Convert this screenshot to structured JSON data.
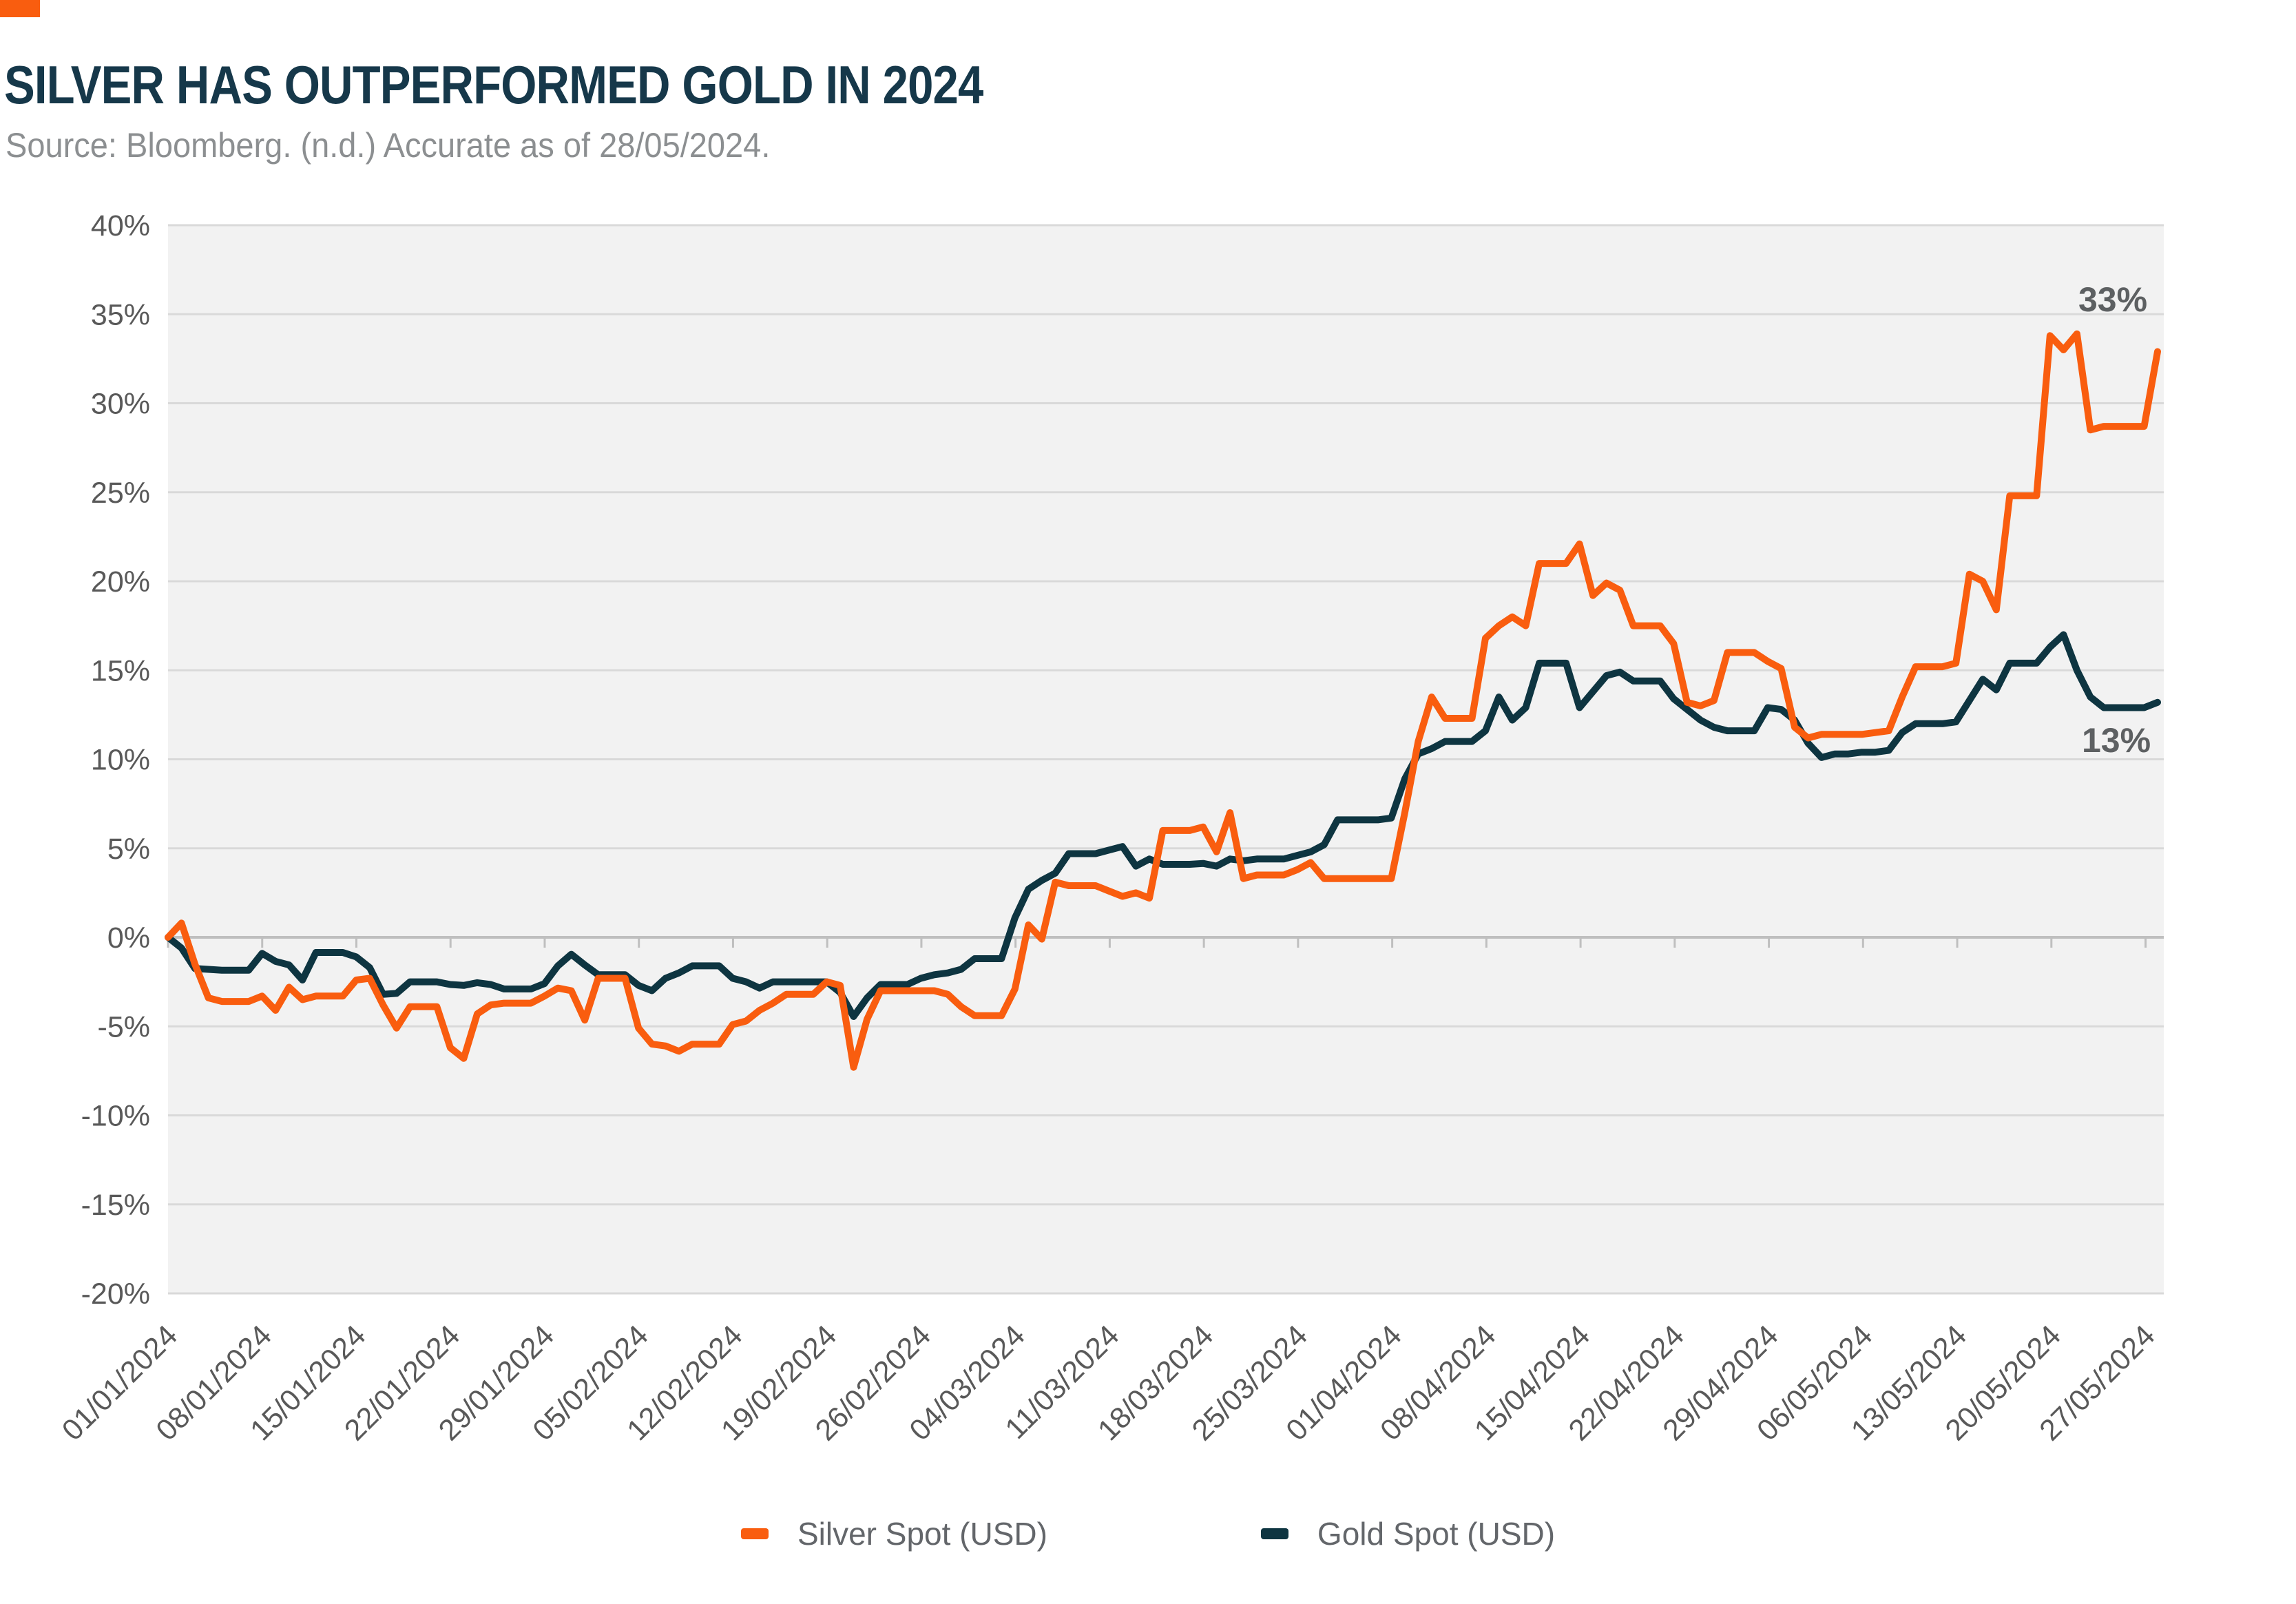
{
  "header": {
    "title": "SILVER HAS OUTPERFORMED GOLD IN 2024",
    "source_note": "Source: Bloomberg. (n.d.) Accurate as of 28/05/2024."
  },
  "colors": {
    "accent_orange": "#f95d0f",
    "dark_teal": "#0e3541",
    "title_text": "#16384a",
    "subtitle_text": "#8c8f91",
    "axis_text": "#595959",
    "end_label_text": "#5d6062",
    "legend_text": "#63666a",
    "plot_background": "#f2f2f2",
    "gridline": "#d9d9d9",
    "zero_axis": "#bfbfbf",
    "page_background": "#ffffff"
  },
  "legend": {
    "items": [
      {
        "label": "Silver Spot (USD)",
        "color": "#f95d0f"
      },
      {
        "label": "Gold Spot (USD)",
        "color": "#0e3541"
      }
    ]
  },
  "chart_data": {
    "type": "line",
    "title": "SILVER HAS OUTPERFORMED GOLD IN 2024",
    "subtitle": "Source: Bloomberg. (n.d.) Accurate as of 28/05/2024.",
    "xlabel": "",
    "ylabel": "",
    "ylim": [
      -20,
      40
    ],
    "ystep": 5,
    "y_tick_labels": [
      "40%",
      "35%",
      "30%",
      "25%",
      "20%",
      "15%",
      "10%",
      "5%",
      "0%",
      "-5%",
      "-10%",
      "-15%",
      "-20%"
    ],
    "grid": "horizontal",
    "legend_position": "bottom-center",
    "x_start_date": "01/01/2024",
    "x_end_date": "28/05/2024",
    "frequency": "daily",
    "x_tick_labels": [
      "01/01/2024",
      "08/01/2024",
      "15/01/2024",
      "22/01/2024",
      "29/01/2024",
      "05/02/2024",
      "12/02/2024",
      "19/02/2024",
      "26/02/2024",
      "04/03/2024",
      "11/03/2024",
      "18/03/2024",
      "25/03/2024",
      "01/04/2024",
      "08/04/2024",
      "15/04/2024",
      "22/04/2024",
      "29/04/2024",
      "06/05/2024",
      "13/05/2024",
      "20/05/2024",
      "27/05/2024"
    ],
    "end_labels": [
      {
        "text": "33%",
        "series": "Silver Spot (USD)"
      },
      {
        "text": "13%",
        "series": "Gold Spot (USD)"
      }
    ],
    "series": [
      {
        "name": "Silver Spot (USD)",
        "color": "#f95d0f",
        "unit": "% change YTD",
        "values": [
          0.0,
          0.8,
          -1.5,
          -3.4,
          -3.6,
          -3.6,
          -3.6,
          -3.3,
          -4.1,
          -2.8,
          -3.5,
          -3.3,
          -3.3,
          -3.3,
          -2.4,
          -2.3,
          -3.8,
          -5.1,
          -3.9,
          -3.9,
          -3.9,
          -6.2,
          -6.8,
          -4.3,
          -3.8,
          -3.7,
          -3.7,
          -3.7,
          -3.3,
          -2.85,
          -3.0,
          -4.65,
          -2.3,
          -2.3,
          -2.3,
          -5.1,
          -6.0,
          -6.1,
          -6.4,
          -6.0,
          -6.0,
          -6.0,
          -4.9,
          -4.7,
          -4.1,
          -3.7,
          -3.2,
          -3.2,
          -3.2,
          -2.5,
          -2.7,
          -7.3,
          -4.6,
          -3.0,
          -3.0,
          -3.0,
          -3.0,
          -3.0,
          -3.2,
          -3.9,
          -4.4,
          -4.4,
          -4.4,
          -2.9,
          0.7,
          -0.1,
          3.1,
          2.9,
          2.9,
          2.9,
          2.6,
          2.3,
          2.5,
          2.2,
          6.0,
          6.0,
          6.0,
          6.2,
          4.8,
          7.0,
          3.3,
          3.5,
          3.5,
          3.5,
          3.8,
          4.2,
          3.3,
          3.3,
          3.3,
          3.3,
          3.3,
          3.3,
          7.0,
          11.0,
          13.5,
          12.3,
          12.3,
          12.3,
          16.8,
          17.5,
          18.0,
          17.5,
          21.0,
          21.0,
          21.0,
          22.1,
          19.2,
          19.9,
          19.5,
          17.5,
          17.5,
          17.5,
          16.5,
          13.2,
          13.0,
          13.3,
          16.0,
          16.0,
          16.0,
          15.5,
          15.1,
          11.8,
          11.2,
          11.4,
          11.4,
          11.4,
          11.4,
          11.5,
          11.6,
          13.5,
          15.2,
          15.2,
          15.2,
          15.4,
          20.4,
          20.0,
          18.4,
          24.8,
          24.8,
          24.8,
          33.8,
          33.0,
          33.9,
          28.5,
          28.7,
          28.7,
          28.7,
          28.7,
          32.9
        ]
      },
      {
        "name": "Gold Spot (USD)",
        "color": "#0e3541",
        "unit": "% change YTD",
        "values": [
          0.0,
          -0.6,
          -1.75,
          -1.8,
          -1.85,
          -1.85,
          -1.85,
          -0.9,
          -1.35,
          -1.55,
          -2.4,
          -0.85,
          -0.85,
          -0.85,
          -1.1,
          -1.7,
          -3.2,
          -3.15,
          -2.5,
          -2.5,
          -2.5,
          -2.65,
          -2.7,
          -2.55,
          -2.65,
          -2.9,
          -2.9,
          -2.9,
          -2.6,
          -1.6,
          -0.95,
          -1.55,
          -2.1,
          -2.1,
          -2.1,
          -2.7,
          -3.0,
          -2.3,
          -2.0,
          -1.6,
          -1.6,
          -1.6,
          -2.3,
          -2.5,
          -2.85,
          -2.5,
          -2.5,
          -2.5,
          -2.5,
          -2.5,
          -3.1,
          -4.45,
          -3.4,
          -2.65,
          -2.65,
          -2.65,
          -2.3,
          -2.1,
          -2.0,
          -1.8,
          -1.2,
          -1.2,
          -1.2,
          1.1,
          2.7,
          3.2,
          3.6,
          4.7,
          4.7,
          4.7,
          4.9,
          5.1,
          4.0,
          4.4,
          4.1,
          4.1,
          4.1,
          4.15,
          4.0,
          4.4,
          4.3,
          4.4,
          4.4,
          4.4,
          4.6,
          4.8,
          5.2,
          6.6,
          6.6,
          6.6,
          6.6,
          6.7,
          8.9,
          10.3,
          10.6,
          11.0,
          11.0,
          11.0,
          11.6,
          13.5,
          12.2,
          12.9,
          15.4,
          15.4,
          15.4,
          12.9,
          13.8,
          14.7,
          14.9,
          14.4,
          14.4,
          14.4,
          13.4,
          12.8,
          12.2,
          11.8,
          11.6,
          11.6,
          11.6,
          12.9,
          12.8,
          12.2,
          10.9,
          10.1,
          10.3,
          10.3,
          10.4,
          10.4,
          10.5,
          11.5,
          12.0,
          12.0,
          12.0,
          12.1,
          13.3,
          14.5,
          13.9,
          15.4,
          15.4,
          15.4,
          16.3,
          17.0,
          15.0,
          13.5,
          12.9,
          12.9,
          12.9,
          12.9,
          13.2
        ]
      }
    ],
    "layout_hints": {
      "plot_left": 244,
      "plot_right": 3142,
      "plot_top": 327,
      "plot_bottom": 1878,
      "last_point_x": 3133,
      "tick_week_spacing": 136.74,
      "x_labels_rotation_deg": -45,
      "ticks_on_zero_line": true
    }
  }
}
